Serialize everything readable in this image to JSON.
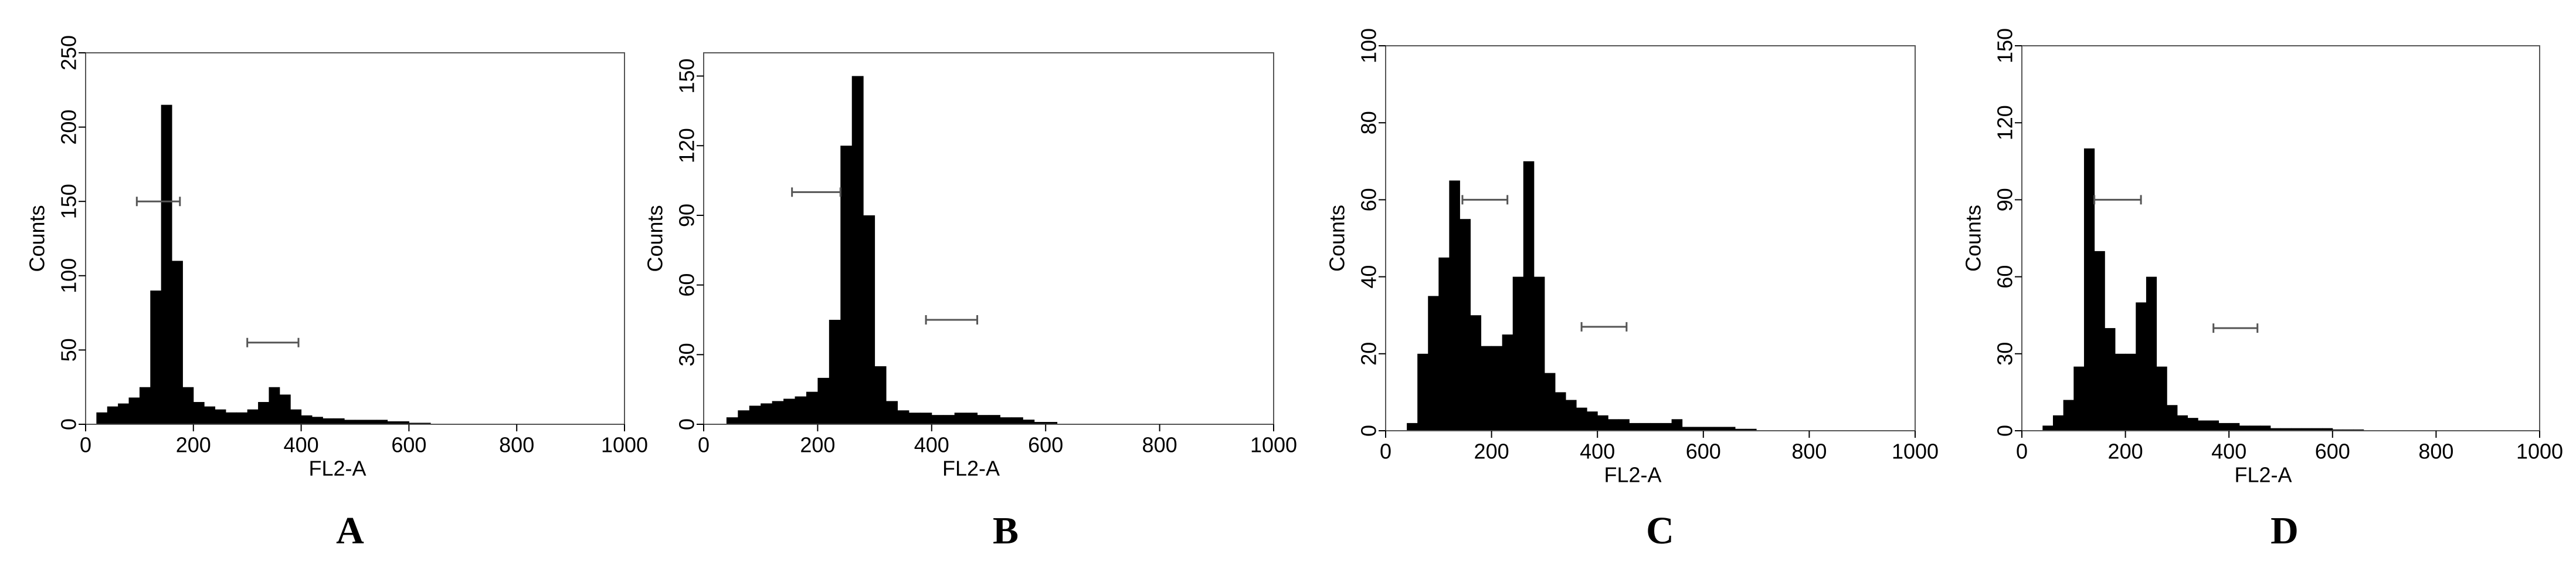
{
  "chart_data": [
    {
      "type": "histogram",
      "panel_label": "A",
      "xlabel": "FL2-A",
      "ylabel": "Counts",
      "color": "#000000",
      "xlim": [
        0,
        1000
      ],
      "ylim": [
        0,
        250
      ],
      "xticks": [
        0,
        200,
        400,
        600,
        800,
        1000
      ],
      "yticks": [
        0,
        50,
        100,
        150,
        200,
        250
      ],
      "bins": [
        0,
        20,
        40,
        60,
        80,
        100,
        120,
        140,
        160,
        180,
        200,
        220,
        240,
        260,
        280,
        300,
        320,
        340,
        360,
        380,
        400,
        420,
        440,
        460,
        480,
        500,
        520,
        540,
        560,
        580,
        600,
        620,
        640,
        660,
        680,
        700,
        720,
        740,
        760,
        780,
        800,
        820,
        840,
        860,
        880,
        900,
        920,
        940,
        960,
        980,
        1000
      ],
      "counts": [
        0,
        8,
        12,
        14,
        18,
        25,
        90,
        215,
        110,
        25,
        15,
        12,
        10,
        8,
        8,
        10,
        15,
        25,
        20,
        10,
        6,
        5,
        4,
        4,
        3,
        3,
        3,
        3,
        2,
        2,
        1,
        1,
        0,
        0,
        0,
        0,
        0,
        0,
        0,
        0,
        0,
        0,
        0,
        0,
        0,
        0,
        0,
        0,
        0,
        0
      ],
      "gates": [
        {
          "x": [
            95,
            175
          ],
          "y": 150
        },
        {
          "x": [
            300,
            395
          ],
          "y": 55
        }
      ]
    },
    {
      "type": "histogram",
      "panel_label": "B",
      "xlabel": "FL2-A",
      "ylabel": "Counts",
      "color": "#000000",
      "xlim": [
        0,
        1000
      ],
      "ylim": [
        0,
        160
      ],
      "xticks": [
        0,
        200,
        400,
        600,
        800,
        1000
      ],
      "yticks": [
        0,
        30,
        60,
        90,
        120,
        150
      ],
      "bins": [
        0,
        20,
        40,
        60,
        80,
        100,
        120,
        140,
        160,
        180,
        200,
        220,
        240,
        260,
        280,
        300,
        320,
        340,
        360,
        380,
        400,
        420,
        440,
        460,
        480,
        500,
        520,
        540,
        560,
        580,
        600,
        620,
        640,
        660,
        680,
        700,
        720,
        740,
        760,
        780,
        800,
        820,
        840,
        860,
        880,
        900,
        920,
        940,
        960,
        980,
        1000
      ],
      "counts": [
        0,
        0,
        3,
        6,
        8,
        9,
        10,
        11,
        12,
        14,
        20,
        45,
        120,
        150,
        90,
        25,
        10,
        6,
        5,
        5,
        4,
        4,
        5,
        5,
        4,
        4,
        3,
        3,
        2,
        1,
        1,
        0,
        0,
        0,
        0,
        0,
        0,
        0,
        0,
        0,
        0,
        0,
        0,
        0,
        0,
        0,
        0,
        0,
        0,
        0
      ],
      "gates": [
        {
          "x": [
            155,
            240
          ],
          "y": 100
        },
        {
          "x": [
            390,
            480
          ],
          "y": 45
        }
      ]
    },
    {
      "type": "histogram",
      "panel_label": "C",
      "xlabel": "FL2-A",
      "ylabel": "Counts",
      "color": "#000000",
      "xlim": [
        0,
        1000
      ],
      "ylim": [
        0,
        100
      ],
      "xticks": [
        0,
        200,
        400,
        600,
        800,
        1000
      ],
      "yticks": [
        0,
        20,
        40,
        60,
        80,
        100
      ],
      "bins": [
        0,
        20,
        40,
        60,
        80,
        100,
        120,
        140,
        160,
        180,
        200,
        220,
        240,
        260,
        280,
        300,
        320,
        340,
        360,
        380,
        400,
        420,
        440,
        460,
        480,
        500,
        520,
        540,
        560,
        580,
        600,
        620,
        640,
        660,
        680,
        700,
        720,
        740,
        760,
        780,
        800,
        820,
        840,
        860,
        880,
        900,
        920,
        940,
        960,
        980,
        1000
      ],
      "counts": [
        0,
        0,
        2,
        20,
        35,
        45,
        65,
        55,
        30,
        22,
        22,
        25,
        40,
        70,
        40,
        15,
        10,
        8,
        6,
        5,
        4,
        3,
        3,
        2,
        2,
        2,
        2,
        3,
        1,
        1,
        1,
        1,
        1,
        0.5,
        0.5,
        0,
        0,
        0,
        0,
        0,
        0,
        0,
        0,
        0,
        0,
        0,
        0,
        0,
        0,
        0
      ],
      "gates": [
        {
          "x": [
            145,
            230
          ],
          "y": 60
        },
        {
          "x": [
            370,
            455
          ],
          "y": 27
        }
      ]
    },
    {
      "type": "histogram",
      "panel_label": "D",
      "xlabel": "FL2-A",
      "ylabel": "Counts",
      "color": "#000000",
      "xlim": [
        0,
        1000
      ],
      "ylim": [
        0,
        150
      ],
      "xticks": [
        0,
        200,
        400,
        600,
        800,
        1000
      ],
      "yticks": [
        0,
        30,
        60,
        90,
        120,
        150
      ],
      "bins": [
        0,
        20,
        40,
        60,
        80,
        100,
        120,
        140,
        160,
        180,
        200,
        220,
        240,
        260,
        280,
        300,
        320,
        340,
        360,
        380,
        400,
        420,
        440,
        460,
        480,
        500,
        520,
        540,
        560,
        580,
        600,
        620,
        640,
        660,
        680,
        700,
        720,
        740,
        760,
        780,
        800,
        820,
        840,
        860,
        880,
        900,
        920,
        940,
        960,
        980,
        1000
      ],
      "counts": [
        0,
        0,
        2,
        6,
        12,
        25,
        110,
        70,
        40,
        30,
        30,
        50,
        60,
        25,
        10,
        6,
        5,
        4,
        4,
        3,
        3,
        2,
        2,
        2,
        1,
        1,
        1,
        1,
        1,
        1,
        0.5,
        0.5,
        0.5,
        0,
        0,
        0,
        0,
        0,
        0,
        0,
        0,
        0,
        0,
        0,
        0,
        0,
        0,
        0,
        0,
        0
      ],
      "gates": [
        {
          "x": [
            140,
            230
          ],
          "y": 90
        },
        {
          "x": [
            370,
            455
          ],
          "y": 40
        }
      ]
    }
  ]
}
